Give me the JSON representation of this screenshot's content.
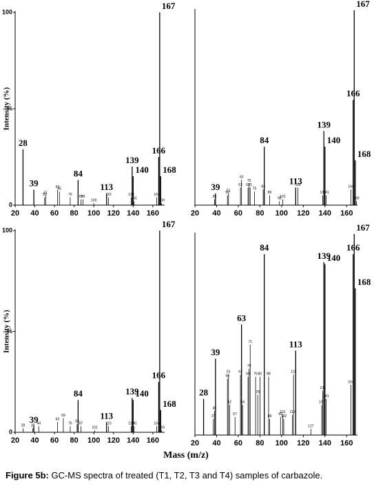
{
  "chart_data": [
    {
      "type": "bar",
      "ylabel": "Intensity (%)",
      "xlim": [
        20,
        172
      ],
      "xticks": [
        20,
        40,
        60,
        80,
        100,
        120,
        140,
        160
      ],
      "ylim": [
        0,
        100
      ],
      "yticks": [
        0,
        {
          "value": 50,
          "label": "%"
        },
        100
      ],
      "peaks": {
        "x": [
          28,
          39,
          84,
          113,
          139,
          140,
          166,
          167,
          168
        ],
        "values": [
          29,
          8,
          13,
          6,
          20,
          15,
          25,
          100,
          15
        ]
      },
      "minor_peaks": {
        "x": [
          50,
          51,
          63,
          65,
          76,
          87,
          89,
          100,
          115,
          138,
          141,
          164,
          169
        ],
        "values": [
          4,
          5,
          8,
          7,
          4,
          3,
          3,
          1,
          4,
          4,
          2,
          4,
          1
        ]
      }
    },
    {
      "type": "bar",
      "xlim": [
        20,
        170
      ],
      "xticks": [
        20,
        40,
        60,
        80,
        100,
        120,
        140,
        160
      ],
      "ylim": [
        0,
        100
      ],
      "peaks": {
        "x": [
          39,
          84,
          113,
          139,
          140,
          166,
          167,
          168
        ],
        "values": [
          6,
          30,
          9,
          38,
          30,
          54,
          100,
          23
        ]
      },
      "minor_peaks": {
        "x": [
          38,
          50,
          51,
          62,
          63,
          69,
          70,
          71,
          75,
          83,
          89,
          98,
          101,
          115,
          138,
          141,
          164,
          169
        ],
        "values": [
          3,
          5,
          6,
          9,
          13,
          9,
          11,
          9,
          7,
          8,
          5,
          2,
          3,
          9,
          5,
          5,
          8,
          2
        ]
      }
    },
    {
      "type": "bar",
      "ylabel": "Intensity (%)",
      "xlim": [
        20,
        172
      ],
      "xticks": [
        20,
        40,
        60,
        80,
        100,
        120,
        140,
        160
      ],
      "ylim": [
        0,
        100
      ],
      "yticks": [
        0,
        {
          "value": 50,
          "label": "%"
        },
        100
      ],
      "peaks": {
        "x": [
          39,
          84,
          113,
          139,
          140,
          166,
          167,
          168
        ],
        "values": [
          3,
          16,
          5,
          17,
          16,
          25,
          100,
          11
        ]
      },
      "minor_peaks": {
        "x": [
          28,
          38,
          44,
          63,
          69,
          76,
          83,
          87,
          101,
          115,
          138,
          141,
          164,
          169
        ],
        "values": [
          2,
          2,
          3,
          5,
          7,
          3,
          4,
          3,
          1,
          3,
          3,
          3,
          3,
          1
        ]
      }
    },
    {
      "type": "bar",
      "xlim": [
        20,
        170
      ],
      "xticks": [
        20,
        40,
        60,
        80,
        100,
        120,
        140,
        160
      ],
      "ylim": [
        0,
        100
      ],
      "peaks": {
        "x": [
          28,
          39,
          63,
          84,
          113,
          139,
          140,
          166,
          167,
          168
        ],
        "values": [
          18,
          38,
          55,
          90,
          42,
          86,
          85,
          90,
          100,
          73
        ]
      },
      "minor_peaks": {
        "x": [
          37,
          38,
          50,
          51,
          52,
          57,
          62,
          64,
          69,
          70,
          71,
          76,
          78,
          80,
          88,
          89,
          99,
          101,
          102,
          110,
          111,
          127,
          137,
          138,
          141,
          164
        ],
        "values": [
          8,
          12,
          28,
          30,
          15,
          9,
          30,
          15,
          29,
          33,
          45,
          29,
          20,
          29,
          29,
          8,
          9,
          10,
          8,
          10,
          30,
          3,
          15,
          22,
          18,
          25
        ]
      }
    }
  ],
  "figure": {
    "xlabel": "Mass (m/z)",
    "caption_label": "Figure 5b:",
    "caption_text": "GC-MS spectra of treated (T1, T2, T3 and T4) samples of carbazole."
  }
}
